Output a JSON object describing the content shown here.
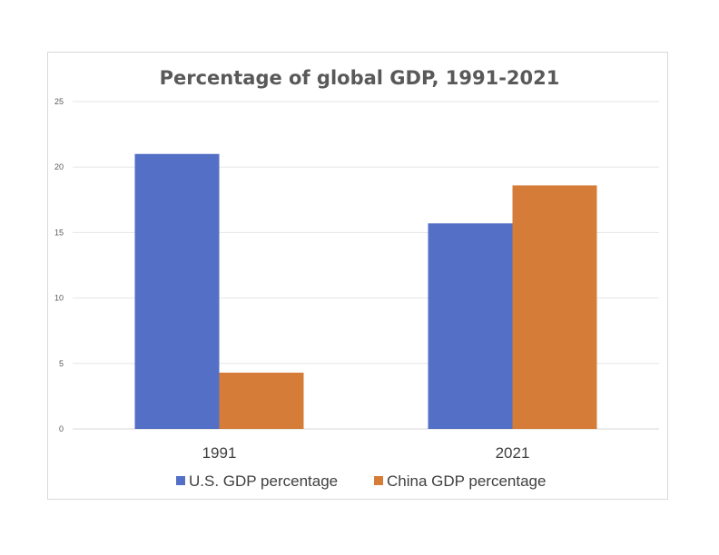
{
  "chart_data": {
    "type": "bar",
    "title": "Percentage of global GDP, 1991-2021",
    "categories": [
      "1991",
      "2021"
    ],
    "series": [
      {
        "name": "U.S. GDP percentage",
        "values": [
          21.0,
          15.7
        ],
        "color": "#5470c6"
      },
      {
        "name": "China GDP percentage",
        "values": [
          4.3,
          18.6
        ],
        "color": "#d57d38"
      }
    ],
    "ylim": [
      0,
      25
    ],
    "yticks": [
      0,
      5,
      10,
      15,
      20,
      25
    ],
    "grid": true,
    "legend": "bottom"
  }
}
